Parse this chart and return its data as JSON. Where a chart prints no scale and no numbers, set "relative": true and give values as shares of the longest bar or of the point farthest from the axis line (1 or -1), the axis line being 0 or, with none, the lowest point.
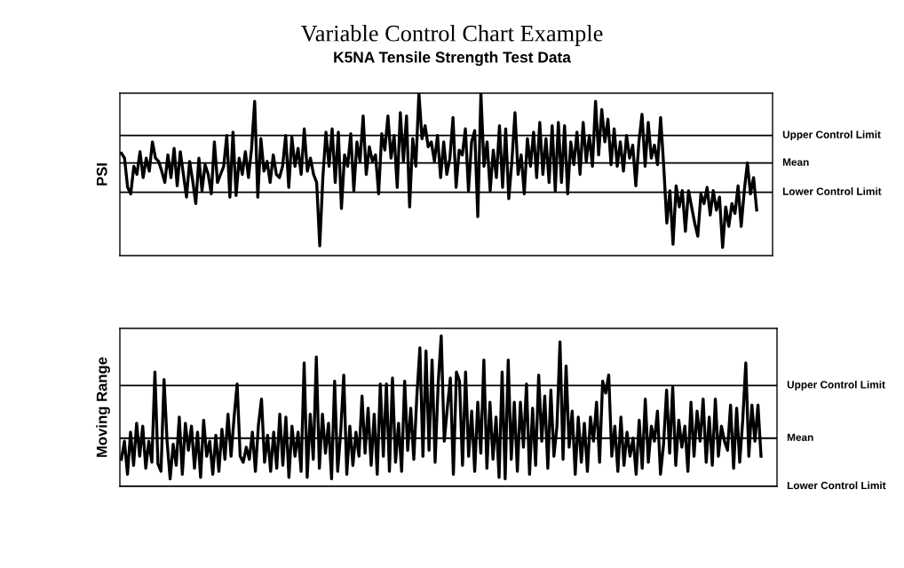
{
  "chart_data": [
    {
      "type": "line",
      "title": "Variable Control Chart Example",
      "subtitle": "K5NA Tensile Strength Test Data",
      "ylabel": "PSI",
      "relative": true,
      "tick_labels": false,
      "marker": "none",
      "line_style": "solid",
      "categories": [
        null,
        null,
        null,
        null,
        null,
        null,
        null,
        null,
        null,
        null,
        null,
        null,
        null,
        null,
        null,
        null,
        null,
        null,
        null,
        null,
        null,
        null,
        null,
        null,
        null,
        null,
        null,
        null,
        null,
        null,
        null,
        null,
        null,
        null,
        null,
        null,
        null,
        null,
        null,
        null,
        null,
        null,
        null,
        null,
        null,
        null,
        null,
        null,
        null,
        null,
        null,
        null,
        null,
        null,
        null,
        null,
        null,
        null,
        null,
        null,
        null,
        null,
        null,
        null,
        null,
        null,
        null,
        null,
        null,
        null,
        null,
        null,
        null,
        null,
        null,
        null,
        null,
        null,
        null,
        null,
        null,
        null,
        null,
        null,
        null,
        null,
        null,
        null,
        null,
        null,
        null,
        null,
        null,
        null,
        null,
        null,
        null,
        null,
        null,
        null,
        null,
        null,
        null,
        null,
        null,
        null,
        null,
        null,
        null,
        null,
        null,
        null,
        null,
        null,
        null,
        null,
        null,
        null,
        null,
        null,
        null,
        null,
        null,
        null,
        null,
        null,
        null,
        null,
        null,
        null,
        null,
        null,
        null,
        null,
        null,
        null,
        null,
        null,
        null,
        null,
        null,
        null,
        null,
        null,
        null,
        null,
        null,
        null,
        null,
        null,
        null,
        null,
        null,
        null,
        null,
        null,
        null,
        null,
        null,
        null,
        null,
        null,
        null,
        null,
        null,
        null,
        null,
        null,
        null,
        null,
        null,
        null,
        null,
        null,
        null,
        null,
        null,
        null,
        null,
        null,
        null,
        null,
        null,
        null,
        null,
        null,
        null,
        null,
        null,
        null,
        null,
        null,
        null,
        null,
        null,
        null,
        null,
        null,
        null,
        null,
        null,
        null,
        null,
        null,
        null,
        null
      ],
      "series": [
        {
          "color": "#000000",
          "values": [
            0.63,
            0.6,
            0.42,
            0.38,
            0.55,
            0.5,
            0.64,
            0.48,
            0.6,
            0.52,
            0.7,
            0.6,
            0.58,
            0.52,
            0.45,
            0.62,
            0.48,
            0.66,
            0.43,
            0.64,
            0.5,
            0.36,
            0.58,
            0.46,
            0.32,
            0.6,
            0.4,
            0.56,
            0.5,
            0.38,
            0.7,
            0.45,
            0.5,
            0.55,
            0.74,
            0.36,
            0.76,
            0.37,
            0.6,
            0.5,
            0.64,
            0.48,
            0.66,
            0.95,
            0.36,
            0.72,
            0.52,
            0.58,
            0.45,
            0.62,
            0.5,
            0.48,
            0.55,
            0.74,
            0.42,
            0.73,
            0.55,
            0.66,
            0.5,
            0.78,
            0.52,
            0.6,
            0.5,
            0.45,
            0.06,
            0.48,
            0.76,
            0.55,
            0.78,
            0.45,
            0.76,
            0.29,
            0.62,
            0.55,
            0.75,
            0.4,
            0.7,
            0.58,
            0.86,
            0.5,
            0.67,
            0.58,
            0.62,
            0.38,
            0.75,
            0.65,
            0.86,
            0.6,
            0.74,
            0.42,
            0.88,
            0.58,
            0.86,
            0.3,
            0.72,
            0.55,
            1.0,
            0.72,
            0.8,
            0.67,
            0.7,
            0.58,
            0.74,
            0.48,
            0.7,
            0.5,
            0.6,
            0.85,
            0.42,
            0.65,
            0.62,
            0.78,
            0.4,
            0.7,
            0.77,
            0.24,
            1.0,
            0.55,
            0.7,
            0.4,
            0.65,
            0.48,
            0.8,
            0.42,
            0.78,
            0.35,
            0.58,
            0.88,
            0.5,
            0.62,
            0.38,
            0.72,
            0.55,
            0.76,
            0.48,
            0.82,
            0.5,
            0.72,
            0.45,
            0.8,
            0.4,
            0.82,
            0.45,
            0.8,
            0.38,
            0.7,
            0.56,
            0.76,
            0.5,
            0.82,
            0.58,
            0.74,
            0.55,
            0.95,
            0.62,
            0.9,
            0.7,
            0.84,
            0.56,
            0.78,
            0.55,
            0.7,
            0.52,
            0.74,
            0.6,
            0.68,
            0.43,
            0.7,
            0.87,
            0.55,
            0.82,
            0.6,
            0.68,
            0.56,
            0.85,
            0.55,
            0.2,
            0.4,
            0.07,
            0.43,
            0.3,
            0.4,
            0.15,
            0.4,
            0.3,
            0.2,
            0.12,
            0.38,
            0.32,
            0.42,
            0.25,
            0.4,
            0.28,
            0.36,
            0.05,
            0.3,
            0.18,
            0.32,
            0.26,
            0.43,
            0.18,
            0.4,
            0.57,
            0.38,
            0.48,
            0.28
          ]
        }
      ],
      "ref_lines": [
        {
          "axis": "y",
          "value": 0.74,
          "label": "Upper Control Limit",
          "color": "#000000"
        },
        {
          "axis": "y",
          "value": 0.57,
          "label": "Mean",
          "color": "#000000"
        },
        {
          "axis": "y",
          "value": 0.39,
          "label": "Lower Control Limit",
          "color": "#000000"
        }
      ]
    },
    {
      "type": "line",
      "ylabel": "Moving Range",
      "relative": true,
      "tick_labels": false,
      "marker": "none",
      "line_style": "solid",
      "categories": [
        null,
        null,
        null,
        null,
        null,
        null,
        null,
        null,
        null,
        null,
        null,
        null,
        null,
        null,
        null,
        null,
        null,
        null,
        null,
        null,
        null,
        null,
        null,
        null,
        null,
        null,
        null,
        null,
        null,
        null,
        null,
        null,
        null,
        null,
        null,
        null,
        null,
        null,
        null,
        null,
        null,
        null,
        null,
        null,
        null,
        null,
        null,
        null,
        null,
        null,
        null,
        null,
        null,
        null,
        null,
        null,
        null,
        null,
        null,
        null,
        null,
        null,
        null,
        null,
        null,
        null,
        null,
        null,
        null,
        null,
        null,
        null,
        null,
        null,
        null,
        null,
        null,
        null,
        null,
        null,
        null,
        null,
        null,
        null,
        null,
        null,
        null,
        null,
        null,
        null,
        null,
        null,
        null,
        null,
        null,
        null,
        null,
        null,
        null,
        null,
        null,
        null,
        null,
        null,
        null,
        null,
        null,
        null,
        null,
        null,
        null,
        null,
        null,
        null,
        null,
        null,
        null,
        null,
        null,
        null,
        null,
        null,
        null,
        null,
        null,
        null,
        null,
        null,
        null,
        null,
        null,
        null,
        null,
        null,
        null,
        null,
        null,
        null,
        null,
        null,
        null,
        null,
        null,
        null,
        null,
        null,
        null,
        null,
        null,
        null,
        null,
        null,
        null,
        null,
        null,
        null,
        null,
        null,
        null,
        null,
        null,
        null,
        null,
        null,
        null,
        null,
        null,
        null,
        null,
        null,
        null,
        null,
        null,
        null,
        null,
        null,
        null,
        null,
        null,
        null,
        null,
        null,
        null,
        null,
        null,
        null,
        null,
        null,
        null,
        null,
        null,
        null,
        null,
        null,
        null,
        null,
        null,
        null,
        null,
        null,
        null,
        null,
        null,
        null,
        null,
        null,
        null,
        null,
        null,
        null,
        null
      ],
      "series": [
        {
          "color": "#000000",
          "values": [
            0.18,
            0.3,
            0.08,
            0.36,
            0.14,
            0.42,
            0.2,
            0.4,
            0.12,
            0.3,
            0.16,
            0.76,
            0.15,
            0.1,
            0.71,
            0.3,
            0.05,
            0.28,
            0.14,
            0.46,
            0.08,
            0.42,
            0.24,
            0.4,
            0.12,
            0.36,
            0.06,
            0.44,
            0.2,
            0.3,
            0.08,
            0.34,
            0.1,
            0.38,
            0.18,
            0.48,
            0.2,
            0.46,
            0.68,
            0.2,
            0.16,
            0.26,
            0.18,
            0.36,
            0.1,
            0.41,
            0.58,
            0.16,
            0.34,
            0.1,
            0.36,
            0.12,
            0.48,
            0.14,
            0.46,
            0.06,
            0.4,
            0.2,
            0.36,
            0.1,
            0.82,
            0.06,
            0.48,
            0.18,
            0.86,
            0.12,
            0.48,
            0.22,
            0.42,
            0.05,
            0.7,
            0.1,
            0.36,
            0.74,
            0.08,
            0.4,
            0.14,
            0.36,
            0.2,
            0.6,
            0.22,
            0.52,
            0.14,
            0.48,
            0.08,
            0.68,
            0.2,
            0.68,
            0.1,
            0.72,
            0.16,
            0.42,
            0.1,
            0.7,
            0.24,
            0.52,
            0.18,
            0.6,
            0.92,
            0.2,
            0.9,
            0.24,
            0.84,
            0.16,
            0.68,
            1.0,
            0.3,
            0.52,
            0.72,
            0.08,
            0.76,
            0.7,
            0.14,
            0.76,
            0.2,
            0.5,
            0.1,
            0.56,
            0.22,
            0.84,
            0.12,
            0.56,
            0.18,
            0.46,
            0.06,
            0.76,
            0.05,
            0.84,
            0.18,
            0.56,
            0.1,
            0.56,
            0.26,
            0.68,
            0.08,
            0.52,
            0.14,
            0.74,
            0.3,
            0.6,
            0.12,
            0.64,
            0.2,
            0.4,
            0.96,
            0.18,
            0.8,
            0.26,
            0.5,
            0.08,
            0.46,
            0.16,
            0.42,
            0.1,
            0.46,
            0.3,
            0.56,
            0.16,
            0.7,
            0.62,
            0.74,
            0.2,
            0.4,
            0.1,
            0.46,
            0.14,
            0.36,
            0.2,
            0.32,
            0.08,
            0.44,
            0.12,
            0.58,
            0.16,
            0.4,
            0.3,
            0.5,
            0.08,
            0.28,
            0.64,
            0.22,
            0.66,
            0.14,
            0.44,
            0.26,
            0.4,
            0.1,
            0.56,
            0.2,
            0.5,
            0.3,
            0.58,
            0.16,
            0.46,
            0.14,
            0.58,
            0.2,
            0.4,
            0.3,
            0.24,
            0.54,
            0.12,
            0.52,
            0.16,
            0.44,
            0.82,
            0.2,
            0.54,
            0.3,
            0.54,
            0.2
          ]
        }
      ],
      "ref_lines": [
        {
          "axis": "y",
          "value": 0.67,
          "label": "Upper Control Limit",
          "color": "#000000"
        },
        {
          "axis": "y",
          "value": 0.32,
          "label": "Mean",
          "color": "#000000"
        },
        {
          "axis": "y",
          "value": 0,
          "label": "Lower Control Limit",
          "color": "#000000"
        }
      ]
    }
  ]
}
